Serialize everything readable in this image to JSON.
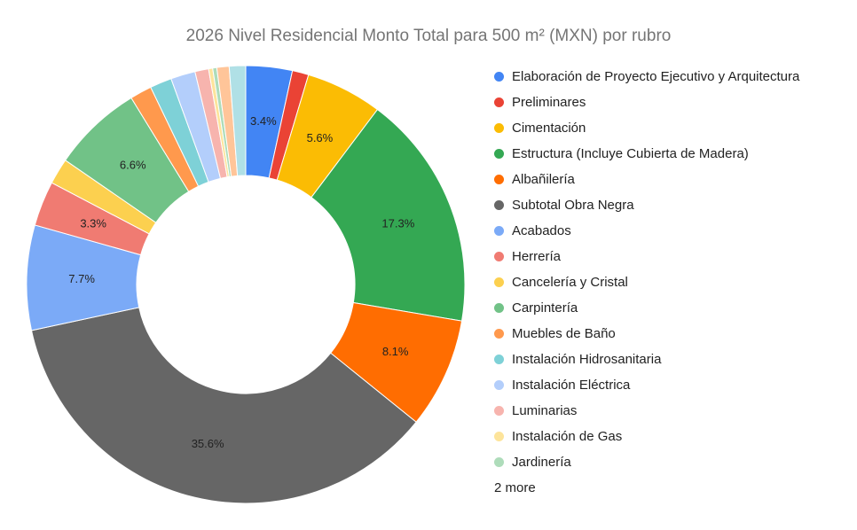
{
  "chart_data": {
    "type": "pie",
    "donut": true,
    "title": "2026 Nivel Residencial Monto Total para 500 m² (MXN) por rubro",
    "legend_position": "right",
    "slices": [
      {
        "label": "Elaboración de Proyecto Ejecutivo y Arquitectura",
        "value": 3.4,
        "color": "#4285f4",
        "show_label": true
      },
      {
        "label": "Preliminares",
        "value": 1.2,
        "color": "#ea4335",
        "show_label": false
      },
      {
        "label": "Cimentación",
        "value": 5.6,
        "color": "#fbbc04",
        "show_label": true
      },
      {
        "label": "Estructura (Incluye Cubierta de Madera)",
        "value": 17.3,
        "color": "#34a853",
        "show_label": true
      },
      {
        "label": "Albañilería",
        "value": 8.1,
        "color": "#ff6d01",
        "show_label": true
      },
      {
        "label": "Subtotal Obra Negra",
        "value": 35.6,
        "color": "#666666",
        "show_label": true
      },
      {
        "label": "Acabados",
        "value": 7.7,
        "color": "#7baaf7",
        "show_label": true
      },
      {
        "label": "Herrería",
        "value": 3.3,
        "color": "#f07b72",
        "show_label": true
      },
      {
        "label": "Cancelería y Cristal",
        "value": 1.9,
        "color": "#fcd04f",
        "show_label": false
      },
      {
        "label": "Carpintería",
        "value": 6.6,
        "color": "#71c287",
        "show_label": true
      },
      {
        "label": "Muebles de Baño",
        "value": 1.6,
        "color": "#ff994d",
        "show_label": false
      },
      {
        "label": "Instalación Hidrosanitaria",
        "value": 1.6,
        "color": "#7ed1d7",
        "show_label": false
      },
      {
        "label": "Instalación Eléctrica",
        "value": 1.8,
        "color": "#b3cefb",
        "show_label": false
      },
      {
        "label": "Luminarias",
        "value": 1.0,
        "color": "#f7b4ae",
        "show_label": false
      },
      {
        "label": "Instalación de Gas",
        "value": 0.3,
        "color": "#fde49b",
        "show_label": false
      },
      {
        "label": "Jardinería",
        "value": 0.3,
        "color": "#aedcba",
        "show_label": false
      },
      {
        "label": "",
        "value": 0.9,
        "color": "#ffc599",
        "show_label": false
      },
      {
        "label": "",
        "value": 1.2,
        "color": "#b0e0e6",
        "show_label": false
      }
    ],
    "legend_visible_count": 16,
    "legend_more_text": "2 more"
  }
}
